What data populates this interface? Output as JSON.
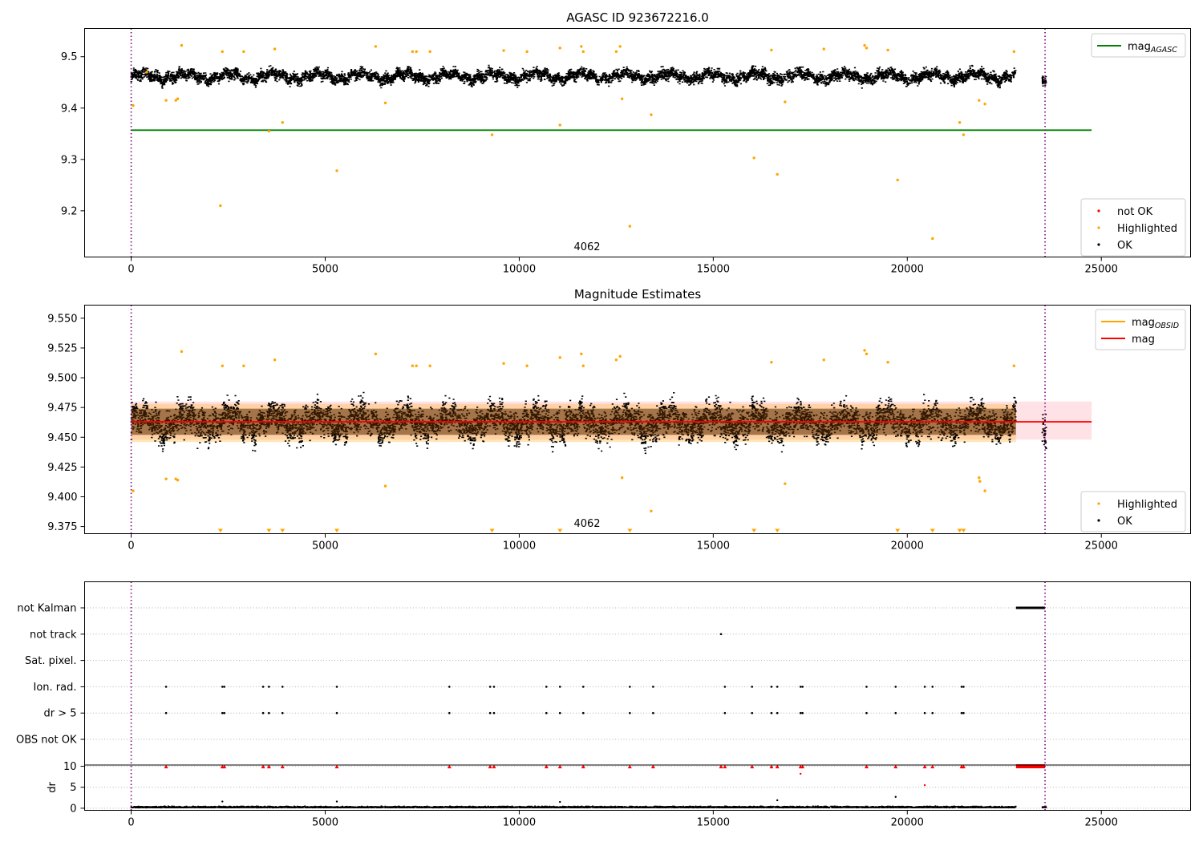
{
  "chart_data": [
    {
      "type": "scatter",
      "title": "AGASC ID 923672216.0",
      "xlim": [
        -1200,
        27300
      ],
      "ylim": [
        9.11,
        9.555
      ],
      "xticks": [
        0,
        5000,
        10000,
        15000,
        20000,
        25000
      ],
      "yticks": [
        9.2,
        9.3,
        9.4,
        9.5
      ],
      "vlines": [
        0,
        23550
      ],
      "annotation": {
        "text": "4062",
        "x": 11500,
        "y": 9.125
      },
      "ok_band": {
        "x_ranges": [
          [
            0,
            22800
          ],
          [
            23480,
            23580
          ]
        ],
        "center": 9.463,
        "spread": 0.018,
        "excursion": 0.035
      },
      "hlines": [
        {
          "name": "mag_AGASC",
          "y": 9.357,
          "x": [
            0,
            24750
          ],
          "color": "#008000"
        }
      ],
      "series": [
        {
          "name": "not OK",
          "color": "#ff0000",
          "points": []
        },
        {
          "name": "Highlighted",
          "color": "#ffa500",
          "points": [
            [
              50,
              9.405
            ],
            [
              400,
              9.47
            ],
            [
              900,
              9.415
            ],
            [
              1150,
              9.415
            ],
            [
              1200,
              9.418
            ],
            [
              1300,
              9.522
            ],
            [
              2300,
              9.21
            ],
            [
              2350,
              9.51
            ],
            [
              2900,
              9.51
            ],
            [
              3550,
              9.355
            ],
            [
              3700,
              9.515
            ],
            [
              3900,
              9.372
            ],
            [
              5300,
              9.278
            ],
            [
              6300,
              9.52
            ],
            [
              6550,
              9.41
            ],
            [
              7250,
              9.51
            ],
            [
              7350,
              9.51
            ],
            [
              7700,
              9.51
            ],
            [
              9300,
              9.348
            ],
            [
              9600,
              9.512
            ],
            [
              10200,
              9.51
            ],
            [
              11050,
              9.367
            ],
            [
              11050,
              9.517
            ],
            [
              11600,
              9.52
            ],
            [
              11650,
              9.51
            ],
            [
              12500,
              9.51
            ],
            [
              12600,
              9.52
            ],
            [
              12650,
              9.418
            ],
            [
              12850,
              9.17
            ],
            [
              13400,
              9.387
            ],
            [
              16050,
              9.303
            ],
            [
              16500,
              9.513
            ],
            [
              16650,
              9.271
            ],
            [
              16850,
              9.412
            ],
            [
              17850,
              9.515
            ],
            [
              18900,
              9.522
            ],
            [
              18950,
              9.517
            ],
            [
              19500,
              9.513
            ],
            [
              19750,
              9.26
            ],
            [
              20650,
              9.146
            ],
            [
              21350,
              9.372
            ],
            [
              21450,
              9.348
            ],
            [
              21850,
              9.415
            ],
            [
              22000,
              9.408
            ],
            [
              22750,
              9.51
            ]
          ]
        },
        {
          "name": "OK",
          "color": "#000000",
          "points": []
        }
      ],
      "legend": [
        {
          "position": "upper right",
          "entries": [
            {
              "label": "mag",
              "sub": "AGASC",
              "color": "#008000",
              "kind": "line"
            }
          ]
        },
        {
          "position": "lower right",
          "entries": [
            {
              "label": "not OK",
              "color": "#ff0000",
              "kind": "dot"
            },
            {
              "label": "Highlighted",
              "color": "#ffa500",
              "kind": "dot"
            },
            {
              "label": "OK",
              "color": "#000000",
              "kind": "dot"
            }
          ]
        }
      ]
    },
    {
      "type": "scatter",
      "title": "Magnitude Estimates",
      "xlim": [
        -1200,
        27300
      ],
      "ylim": [
        9.369,
        9.561
      ],
      "xticks": [
        0,
        5000,
        10000,
        15000,
        20000,
        25000
      ],
      "yticks": [
        9.375,
        9.4,
        9.425,
        9.45,
        9.475,
        9.5,
        9.525,
        9.55
      ],
      "vlines": [
        0,
        23550
      ],
      "annotation": {
        "text": "4062",
        "x": 11500,
        "y": 9.38
      },
      "ok_band": {
        "x_ranges": [
          [
            0,
            22800
          ],
          [
            23480,
            23580
          ]
        ],
        "center": 9.463,
        "spread": 0.018,
        "excursion": 0.035
      },
      "bands": [
        {
          "y": [
            9.448,
            9.48
          ],
          "x": [
            0,
            24750
          ],
          "color": "#ff8c96",
          "opacity": 0.25
        },
        {
          "y": [
            9.446,
            9.478
          ],
          "x": [
            0,
            22800
          ],
          "color": "#ffa500",
          "opacity": 0.28
        }
      ],
      "hlines": [
        {
          "name": "mag",
          "y": 9.463,
          "x": [
            0,
            24750
          ],
          "color": "#ff0000"
        }
      ],
      "clipped_below": [
        2300,
        3550,
        3900,
        5300,
        9300,
        11050,
        12850,
        16050,
        16650,
        19750,
        20650,
        21350,
        21450
      ],
      "series": [
        {
          "name": "Highlighted",
          "color": "#ffa500",
          "points": [
            [
              50,
              9.405
            ],
            [
              900,
              9.415
            ],
            [
              1150,
              9.415
            ],
            [
              1200,
              9.414
            ],
            [
              1300,
              9.522
            ],
            [
              2350,
              9.51
            ],
            [
              2900,
              9.51
            ],
            [
              3700,
              9.515
            ],
            [
              6300,
              9.52
            ],
            [
              6550,
              9.409
            ],
            [
              7250,
              9.51
            ],
            [
              7350,
              9.51
            ],
            [
              7700,
              9.51
            ],
            [
              9600,
              9.512
            ],
            [
              10200,
              9.51
            ],
            [
              11050,
              9.517
            ],
            [
              11600,
              9.52
            ],
            [
              11650,
              9.51
            ],
            [
              12500,
              9.515
            ],
            [
              12600,
              9.518
            ],
            [
              12650,
              9.416
            ],
            [
              13400,
              9.388
            ],
            [
              16500,
              9.513
            ],
            [
              16850,
              9.411
            ],
            [
              17850,
              9.515
            ],
            [
              18900,
              9.523
            ],
            [
              18950,
              9.52
            ],
            [
              19500,
              9.513
            ],
            [
              21850,
              9.416
            ],
            [
              21870,
              9.413
            ],
            [
              22000,
              9.405
            ],
            [
              22750,
              9.51
            ]
          ]
        },
        {
          "name": "OK",
          "color": "#000000",
          "points": []
        }
      ],
      "legend": [
        {
          "position": "upper right",
          "entries": [
            {
              "label": "mag",
              "sub": "OBSID",
              "color": "#ffa500",
              "kind": "line"
            },
            {
              "label": "mag",
              "color": "#ff0000",
              "kind": "line"
            }
          ]
        },
        {
          "position": "lower right",
          "entries": [
            {
              "label": "Highlighted",
              "color": "#ffa500",
              "kind": "dot"
            },
            {
              "label": "OK",
              "color": "#000000",
              "kind": "dot"
            }
          ]
        }
      ]
    },
    {
      "type": "scatter",
      "title": "",
      "xlim": [
        -1200,
        27300
      ],
      "xticks": [
        0,
        5000,
        10000,
        15000,
        20000,
        25000
      ],
      "vlines": [
        0,
        23550
      ],
      "flags": {
        "categories": [
          "not Kalman",
          "not track",
          "Sat. pixel.",
          "Ion. rad.",
          "dr > 5",
          "OBS not OK"
        ],
        "points": {
          "not Kalman": [
            [
              22800,
              23550
            ]
          ],
          "not track": [
            15200
          ],
          "Sat. pixel.": [],
          "Ion. rad.": [
            900,
            2350,
            2400,
            3400,
            3550,
            3900,
            5300,
            8200,
            9250,
            9350,
            10700,
            11050,
            11650,
            12850,
            13450,
            15300,
            16000,
            16500,
            16650,
            17250,
            17300,
            18950,
            19700,
            20450,
            20650,
            21400,
            21450
          ],
          "dr > 5": [
            900,
            2350,
            2400,
            3400,
            3550,
            3900,
            5300,
            8200,
            9250,
            9350,
            10700,
            11050,
            11650,
            12850,
            13450,
            15300,
            16000,
            16500,
            16650,
            17250,
            17300,
            18950,
            19700,
            20450,
            20650,
            21400,
            21450
          ],
          "OBS not OK": []
        }
      },
      "dr": {
        "ylabel": "dr",
        "ylim": [
          -0.5,
          10.3
        ],
        "yticks": [
          0,
          5,
          10
        ],
        "cap": 10,
        "capped_x": [
          900,
          2350,
          2400,
          3400,
          3550,
          3900,
          5300,
          8200,
          9250,
          9350,
          10700,
          11050,
          11650,
          12850,
          13450,
          15200,
          15300,
          16000,
          16500,
          16650,
          17250,
          17300,
          18950,
          19700,
          20450,
          20650,
          21400,
          21450
        ],
        "capped_range": [
          22800,
          23550
        ],
        "points": [
          [
            2350,
            1.6
          ],
          [
            5300,
            1.6
          ],
          [
            11050,
            1.5
          ],
          [
            16650,
            1.9
          ],
          [
            17250,
            8.2
          ],
          [
            19700,
            2.7
          ],
          [
            20450,
            5.5
          ]
        ],
        "baseline_ranges": [
          [
            0,
            22800
          ],
          [
            23480,
            23580
          ]
        ]
      }
    }
  ]
}
